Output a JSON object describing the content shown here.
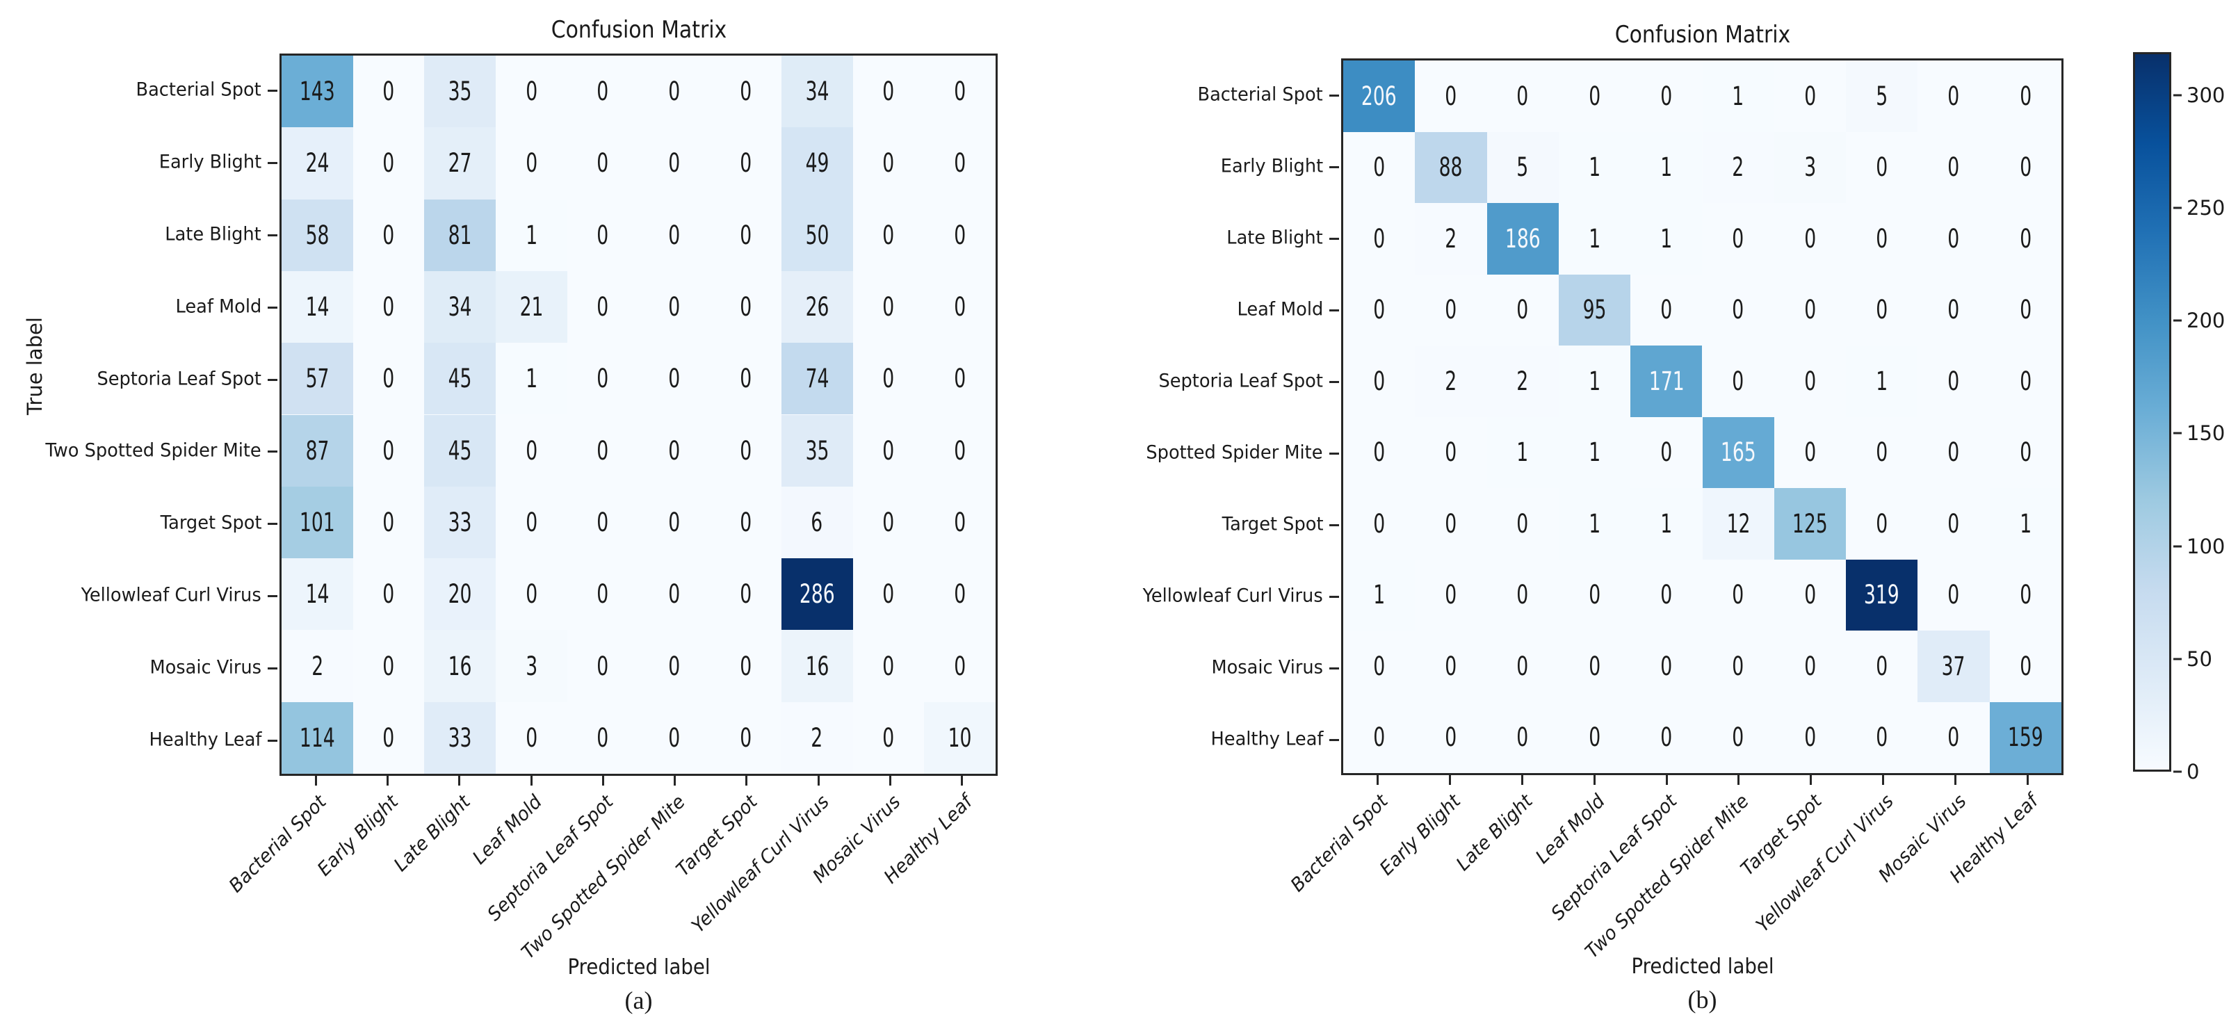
{
  "figure_background": "#ffffff",
  "axis_color": "#262626",
  "colormap": {
    "name": "Blues",
    "anchors": [
      "#f7fbff",
      "#deebf7",
      "#c6dbef",
      "#9ecae1",
      "#6baed6",
      "#4292c6",
      "#2171b5",
      "#08519c",
      "#08306b"
    ]
  },
  "text_colors": {
    "dark": "#1a1a1a",
    "light": "#f5f8fc"
  },
  "chart_data": [
    {
      "type": "heatmap",
      "title": "Confusion Matrix",
      "xlabel": "Predicted label",
      "ylabel": "True label",
      "caption": "(a)",
      "legend_position": "none",
      "grid": false,
      "row_labels": [
        "Bacterial Spot",
        "Early Blight",
        "Late Blight",
        "Leaf Mold",
        "Septoria Leaf Spot",
        "Two Spotted Spider Mite",
        "Target Spot",
        "Yellowleaf Curl Virus",
        "Mosaic Virus",
        "Healthy Leaf"
      ],
      "col_labels": [
        "Bacterial Spot",
        "Early Blight",
        "Late Blight",
        "Leaf Mold",
        "Septoria Leaf Spot",
        "Two Spotted Spider Mite",
        "Target Spot",
        "Yellowleaf Curl Virus",
        "Mosaic Virus",
        "Healthy Leaf"
      ],
      "values": [
        [
          143,
          0,
          35,
          0,
          0,
          0,
          0,
          34,
          0,
          0
        ],
        [
          24,
          0,
          27,
          0,
          0,
          0,
          0,
          49,
          0,
          0
        ],
        [
          58,
          0,
          81,
          1,
          0,
          0,
          0,
          50,
          0,
          0
        ],
        [
          14,
          0,
          34,
          21,
          0,
          0,
          0,
          26,
          0,
          0
        ],
        [
          57,
          0,
          45,
          1,
          0,
          0,
          0,
          74,
          0,
          0
        ],
        [
          87,
          0,
          45,
          0,
          0,
          0,
          0,
          35,
          0,
          0
        ],
        [
          101,
          0,
          33,
          0,
          0,
          0,
          0,
          6,
          0,
          0
        ],
        [
          14,
          0,
          20,
          0,
          0,
          0,
          0,
          286,
          0,
          0
        ],
        [
          2,
          0,
          16,
          3,
          0,
          0,
          0,
          16,
          0,
          0
        ],
        [
          114,
          0,
          33,
          0,
          0,
          0,
          0,
          2,
          0,
          10
        ]
      ],
      "vmin": 0,
      "vmax": 286
    },
    {
      "type": "heatmap",
      "title": "Confusion Matrix",
      "xlabel": "Predicted label",
      "ylabel": "",
      "caption": "(b)",
      "legend_position": "colorbar-right",
      "grid": false,
      "row_labels": [
        "Bacterial Spot",
        "Early Blight",
        "Late Blight",
        "Leaf Mold",
        "Septoria Leaf Spot",
        "Spotted Spider Mite",
        "Target Spot",
        "Yellowleaf Curl Virus",
        "Mosaic Virus",
        "Healthy Leaf"
      ],
      "col_labels": [
        "Bacterial Spot",
        "Early Blight",
        "Late Blight",
        "Leaf Mold",
        "Septoria Leaf Spot",
        "Two Spotted Spider Mite",
        "Target Spot",
        "Yellowleaf Curl Virus",
        "Mosaic Virus",
        "Healthy Leaf"
      ],
      "values": [
        [
          206,
          0,
          0,
          0,
          0,
          1,
          0,
          5,
          0,
          0
        ],
        [
          0,
          88,
          5,
          1,
          1,
          2,
          3,
          0,
          0,
          0
        ],
        [
          0,
          2,
          186,
          1,
          1,
          0,
          0,
          0,
          0,
          0
        ],
        [
          0,
          0,
          0,
          95,
          0,
          0,
          0,
          0,
          0,
          0
        ],
        [
          0,
          2,
          2,
          1,
          171,
          0,
          0,
          1,
          0,
          0
        ],
        [
          0,
          0,
          1,
          1,
          0,
          165,
          0,
          0,
          0,
          0
        ],
        [
          0,
          0,
          0,
          1,
          1,
          12,
          125,
          0,
          0,
          1
        ],
        [
          1,
          0,
          0,
          0,
          0,
          0,
          0,
          319,
          0,
          0
        ],
        [
          0,
          0,
          0,
          0,
          0,
          0,
          0,
          0,
          37,
          0
        ],
        [
          0,
          0,
          0,
          0,
          0,
          0,
          0,
          0,
          0,
          159
        ]
      ],
      "vmin": 0,
      "vmax": 319
    }
  ],
  "colorbar": {
    "vmin": 0,
    "vmax": 319,
    "tick_labels": [
      "0",
      "50",
      "100",
      "150",
      "200",
      "250",
      "300"
    ],
    "tick_values": [
      0,
      50,
      100,
      150,
      200,
      250,
      300
    ]
  }
}
